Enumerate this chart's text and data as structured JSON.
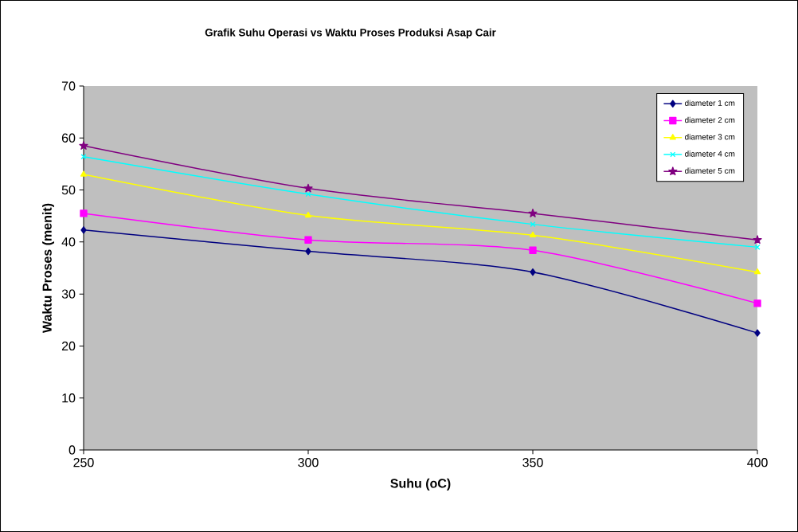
{
  "chart_data": {
    "type": "line",
    "title": "Grafik Suhu Operasi vs Waktu  Proses Produksi Asap Cair",
    "xlabel": "Suhu (oC)",
    "ylabel": "Waktu Proses (menit)",
    "x": [
      250,
      300,
      350,
      400
    ],
    "xlim": [
      250,
      400
    ],
    "xticks": [
      250,
      300,
      350,
      400
    ],
    "ylim": [
      0,
      70
    ],
    "yticks": [
      0,
      10,
      20,
      30,
      40,
      50,
      60,
      70
    ],
    "grid": false,
    "legend": "top right",
    "series": [
      {
        "name": "diameter  1 cm",
        "color": "#000080",
        "marker": "diamond",
        "values": [
          42.3,
          38.2,
          34.2,
          22.5
        ]
      },
      {
        "name": "diameter 2 cm",
        "color": "#ff00ff",
        "marker": "square",
        "values": [
          45.5,
          40.4,
          38.4,
          28.2
        ]
      },
      {
        "name": "diameter 3 cm",
        "color": "#ffff00",
        "marker": "triangle",
        "values": [
          53.0,
          45.1,
          41.3,
          34.2
        ]
      },
      {
        "name": "diameter 4 cm",
        "color": "#00ffff",
        "marker": "cross",
        "values": [
          56.4,
          49.2,
          43.4,
          39.0
        ]
      },
      {
        "name": "diameter 5 cm",
        "color": "#800080",
        "marker": "star",
        "values": [
          58.5,
          50.3,
          45.5,
          40.4
        ]
      }
    ]
  }
}
